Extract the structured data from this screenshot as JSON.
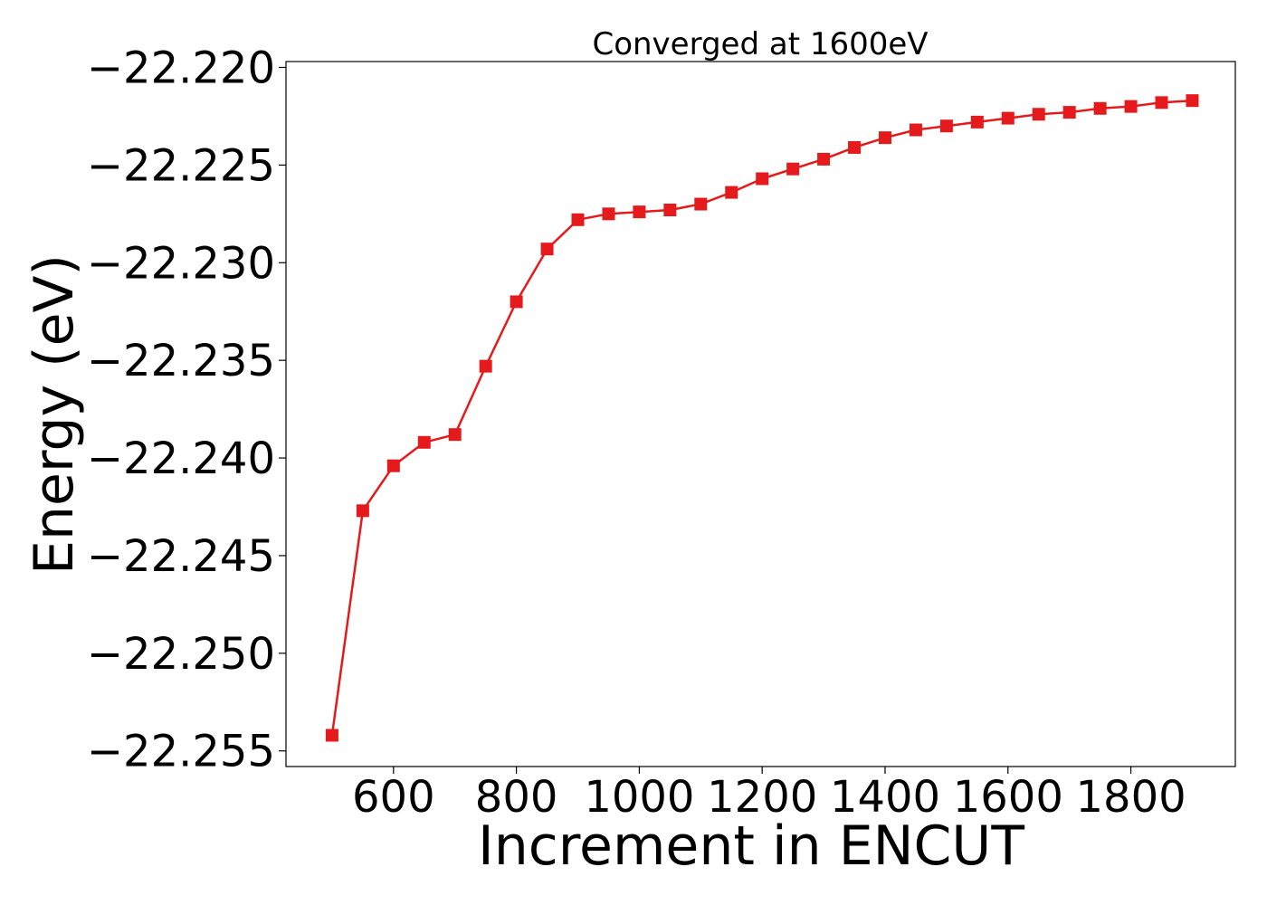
{
  "chart_data": {
    "type": "line",
    "title": "Converged at 1600eV",
    "xlabel": "Increment in ENCUT",
    "ylabel": "Energy (eV)",
    "xlim": [
      425,
      1970
    ],
    "ylim": [
      -22.2558,
      -22.2197
    ],
    "xticks": [
      600,
      800,
      1000,
      1200,
      1400,
      1600,
      1800
    ],
    "xtick_labels": [
      "600",
      "800",
      "1000",
      "1200",
      "1400",
      "1600",
      "1800"
    ],
    "yticks": [
      -22.22,
      -22.225,
      -22.23,
      -22.235,
      -22.24,
      -22.245,
      -22.25,
      -22.255
    ],
    "ytick_labels": [
      "−22.220",
      "−22.225",
      "−22.230",
      "−22.235",
      "−22.240",
      "−22.245",
      "−22.250",
      "−22.255"
    ],
    "grid": false,
    "series": [
      {
        "color": "#e41a1c",
        "marker": "square",
        "x": [
          500,
          550,
          600,
          650,
          700,
          750,
          800,
          850,
          900,
          950,
          1000,
          1050,
          1100,
          1150,
          1200,
          1250,
          1300,
          1350,
          1400,
          1450,
          1500,
          1550,
          1600,
          1650,
          1700,
          1750,
          1800,
          1850,
          1900
        ],
        "y": [
          -22.2542,
          -22.2427,
          -22.2404,
          -22.2392,
          -22.2388,
          -22.2353,
          -22.232,
          -22.2293,
          -22.2278,
          -22.2275,
          -22.2274,
          -22.2273,
          -22.227,
          -22.2264,
          -22.2257,
          -22.2252,
          -22.2247,
          -22.2241,
          -22.2236,
          -22.2232,
          -22.223,
          -22.2228,
          -22.2226,
          -22.2224,
          -22.2223,
          -22.2221,
          -22.222,
          -22.2218,
          -22.2217
        ]
      }
    ]
  }
}
